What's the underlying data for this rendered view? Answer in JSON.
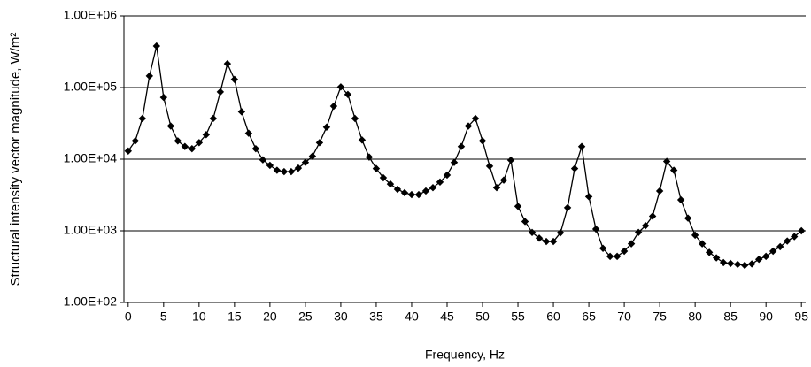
{
  "chart_data": {
    "type": "line",
    "x_label": "Frequency, Hz",
    "y_label": "Structural intensity vector magnitude, W/m²",
    "x": [
      0,
      1,
      2,
      3,
      4,
      5,
      6,
      7,
      8,
      9,
      10,
      11,
      12,
      13,
      14,
      15,
      16,
      17,
      18,
      19,
      20,
      21,
      22,
      23,
      24,
      25,
      26,
      27,
      28,
      29,
      30,
      31,
      32,
      33,
      34,
      35,
      36,
      37,
      38,
      39,
      40,
      41,
      42,
      43,
      44,
      45,
      46,
      47,
      48,
      49,
      50,
      51,
      52,
      53,
      54,
      55,
      56,
      57,
      58,
      59,
      60,
      61,
      62,
      63,
      64,
      65,
      66,
      67,
      68,
      69,
      70,
      71,
      72,
      73,
      74,
      75,
      76,
      77,
      78,
      79,
      80,
      81,
      82,
      83,
      84,
      85,
      86,
      87,
      88,
      89,
      90,
      91,
      92,
      93,
      94,
      95
    ],
    "values": [
      13000,
      18000,
      37000,
      145000,
      380000,
      73000,
      29000,
      18000,
      15000,
      14000,
      17000,
      22000,
      37000,
      87000,
      215000,
      130000,
      46000,
      23000,
      14000,
      9800,
      8200,
      7000,
      6700,
      6700,
      7500,
      9000,
      11000,
      17000,
      28000,
      55000,
      102000,
      80000,
      37000,
      18500,
      10700,
      7400,
      5500,
      4500,
      3800,
      3400,
      3200,
      3200,
      3600,
      4000,
      4800,
      6000,
      9000,
      15000,
      29000,
      37000,
      18000,
      8000,
      4000,
      5100,
      9700,
      2200,
      1350,
      950,
      790,
      710,
      710,
      940,
      2100,
      7400,
      15000,
      3000,
      1060,
      570,
      440,
      440,
      520,
      660,
      950,
      1180,
      1600,
      3600,
      9300,
      7000,
      2700,
      1500,
      870,
      660,
      500,
      420,
      360,
      350,
      340,
      330,
      345,
      400,
      440,
      520,
      600,
      720,
      830,
      1000
    ],
    "color": "#000000",
    "xlim": [
      -0.6,
      95.6
    ],
    "xticks": [
      0,
      5,
      10,
      15,
      20,
      25,
      30,
      35,
      40,
      45,
      50,
      55,
      60,
      65,
      70,
      75,
      80,
      85,
      90,
      95
    ],
    "ylim": [
      100,
      1000000
    ],
    "ylog": true,
    "yticks": [
      {
        "value": 100,
        "label": "1.00E+02"
      },
      {
        "value": 1000,
        "label": "1.00E+03"
      },
      {
        "value": 10000,
        "label": "1.00E+04"
      },
      {
        "value": 100000,
        "label": "1.00E+05"
      },
      {
        "value": 1000000,
        "label": "1.00E+06"
      }
    ],
    "grid": true,
    "marker": "diamond"
  }
}
